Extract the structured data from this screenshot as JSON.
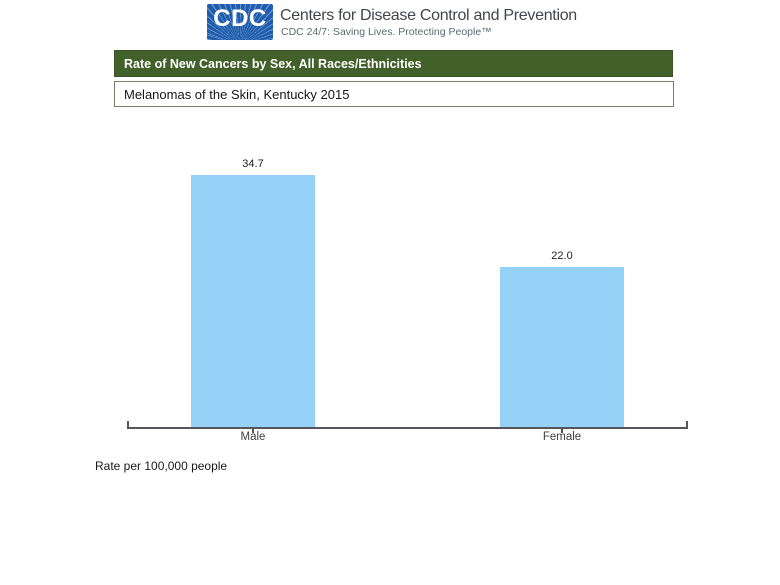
{
  "header": {
    "logo_text": "CDC",
    "title": "Centers for Disease Control and Prevention",
    "tagline": "CDC 24/7: Saving Lives. Protecting People™"
  },
  "banner": {
    "title": "Rate of New Cancers by Sex, All Races/Ethnicities",
    "subtitle": "Melanomas of the Skin, Kentucky 2015"
  },
  "footnote": "Rate per 100,000 people",
  "colors": {
    "banner_green": "#42602a",
    "subtitle_border_olive": "#74825f",
    "bar_blue": "#96d1f8",
    "logo_blue": "#1e5cad",
    "site_title_gray": "#43454f",
    "tagline_gray": "#5d6a75",
    "axis_gray": "#55565a"
  },
  "chart_data": {
    "type": "bar",
    "title": "Rate of New Cancers by Sex, All Races/Ethnicities",
    "subtitle": "Melanomas of the Skin, Kentucky 2015",
    "categories": [
      "Male",
      "Female"
    ],
    "values": [
      34.7,
      22.0
    ],
    "value_labels": [
      "34.7",
      "22.0"
    ],
    "xlabel": "",
    "ylabel": "Rate per 100,000 people",
    "ylim": [
      0,
      40
    ],
    "bar_color": "#96d1f8",
    "grid": false,
    "legend": false,
    "y_axis_shown": false,
    "value_labels_position": "above-bars"
  }
}
